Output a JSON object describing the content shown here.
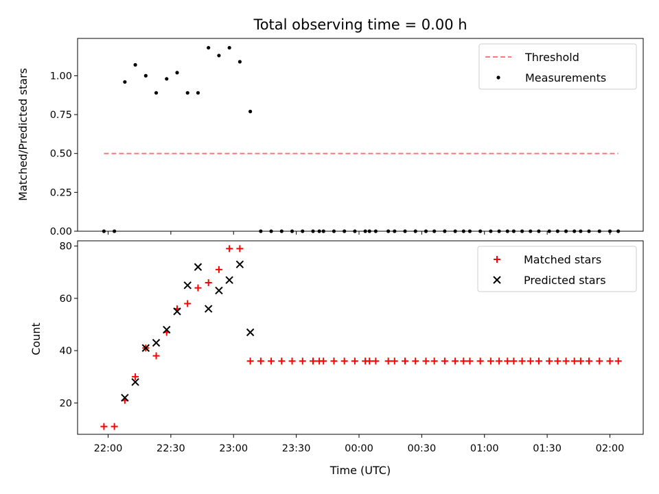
{
  "figure": {
    "title": "Total observing time = 0.00 h"
  },
  "chart_data": [
    {
      "type": "scatter",
      "panel": "top",
      "title": "Total observing time = 0.00 h",
      "xlabel": "",
      "ylabel": "Matched/Predicted stars",
      "ylim": [
        0,
        1.24
      ],
      "yticks": [
        "0.00",
        "0.25",
        "0.50",
        "0.75",
        "1.00"
      ],
      "x_axis": {
        "type": "time",
        "tick_labels": [
          "22:00",
          "22:30",
          "23:00",
          "23:30",
          "00:00",
          "00:30",
          "01:00",
          "01:30",
          "02:00"
        ]
      },
      "legend": {
        "placement": "top-right",
        "entries": [
          "Threshold",
          "Measurements"
        ]
      },
      "grid": false,
      "series": [
        {
          "name": "Threshold",
          "style": "dashed-line",
          "color": "#ff7777",
          "x": [
            "21:58",
            "02:04"
          ],
          "y": [
            0.5,
            0.5
          ]
        },
        {
          "name": "Measurements",
          "style": "dot",
          "color": "#000000",
          "x": [
            "21:58",
            "22:03",
            "22:08",
            "22:13",
            "22:18",
            "22:23",
            "22:28",
            "22:33",
            "22:38",
            "22:43",
            "22:48",
            "22:53",
            "22:58",
            "23:03",
            "23:08",
            "23:13",
            "23:18",
            "23:23",
            "23:28",
            "23:33",
            "23:38",
            "23:41",
            "23:43",
            "23:48",
            "23:53",
            "23:58",
            "00:03",
            "00:05",
            "00:08",
            "00:14",
            "00:17",
            "00:22",
            "00:27",
            "00:32",
            "00:36",
            "00:41",
            "00:46",
            "00:50",
            "00:53",
            "00:58",
            "01:03",
            "01:07",
            "01:11",
            "01:14",
            "01:18",
            "01:22",
            "01:26",
            "01:31",
            "01:35",
            "01:39",
            "01:43",
            "01:46",
            "01:50",
            "01:55",
            "02:00",
            "02:04"
          ],
          "y": [
            0,
            0,
            0.96,
            1.07,
            1.0,
            0.89,
            0.98,
            1.02,
            0.89,
            0.89,
            1.18,
            1.13,
            1.18,
            1.09,
            0.77,
            0,
            0,
            0,
            0,
            0,
            0,
            0,
            0,
            0,
            0,
            0,
            0,
            0,
            0,
            0,
            0,
            0,
            0,
            0,
            0,
            0,
            0,
            0,
            0,
            0,
            0,
            0,
            0,
            0,
            0,
            0,
            0,
            0,
            0,
            0,
            0,
            0,
            0,
            0,
            0,
            0
          ]
        }
      ]
    },
    {
      "type": "scatter",
      "panel": "bottom",
      "xlabel": "Time (UTC)",
      "ylabel": "Count",
      "ylim": [
        8,
        82
      ],
      "yticks": [
        "20",
        "40",
        "60",
        "80"
      ],
      "x_axis": {
        "type": "time",
        "tick_labels": [
          "22:00",
          "22:30",
          "23:00",
          "23:30",
          "00:00",
          "00:30",
          "01:00",
          "01:30",
          "02:00"
        ]
      },
      "legend": {
        "placement": "top-right",
        "entries": [
          "Matched stars",
          "Predicted stars"
        ]
      },
      "grid": false,
      "series": [
        {
          "name": "Matched stars",
          "marker": "plus",
          "color": "#ff0000",
          "x": [
            "21:58",
            "22:03",
            "22:08",
            "22:13",
            "22:18",
            "22:23",
            "22:28",
            "22:33",
            "22:38",
            "22:43",
            "22:48",
            "22:53",
            "22:58",
            "23:03",
            "23:08",
            "23:13",
            "23:18",
            "23:23",
            "23:28",
            "23:33",
            "23:38",
            "23:41",
            "23:43",
            "23:48",
            "23:53",
            "23:58",
            "00:03",
            "00:05",
            "00:08",
            "00:14",
            "00:17",
            "00:22",
            "00:27",
            "00:32",
            "00:36",
            "00:41",
            "00:46",
            "00:50",
            "00:53",
            "00:58",
            "01:03",
            "01:07",
            "01:11",
            "01:14",
            "01:18",
            "01:22",
            "01:26",
            "01:31",
            "01:35",
            "01:39",
            "01:43",
            "01:46",
            "01:50",
            "01:55",
            "02:00",
            "02:04"
          ],
          "y": [
            11,
            11,
            21,
            30,
            41,
            38,
            47,
            56,
            58,
            64,
            66,
            71,
            79,
            79,
            36,
            36,
            36,
            36,
            36,
            36,
            36,
            36,
            36,
            36,
            36,
            36,
            36,
            36,
            36,
            36,
            36,
            36,
            36,
            36,
            36,
            36,
            36,
            36,
            36,
            36,
            36,
            36,
            36,
            36,
            36,
            36,
            36,
            36,
            36,
            36,
            36,
            36,
            36,
            36,
            36,
            36
          ]
        },
        {
          "name": "Predicted stars",
          "marker": "x",
          "color": "#000000",
          "x": [
            "22:08",
            "22:13",
            "22:18",
            "22:23",
            "22:28",
            "22:33",
            "22:38",
            "22:43",
            "22:48",
            "22:53",
            "22:58",
            "23:03",
            "23:08"
          ],
          "y": [
            22,
            28,
            41,
            43,
            48,
            55,
            65,
            72,
            56,
            63,
            67,
            73,
            47
          ]
        }
      ]
    }
  ]
}
